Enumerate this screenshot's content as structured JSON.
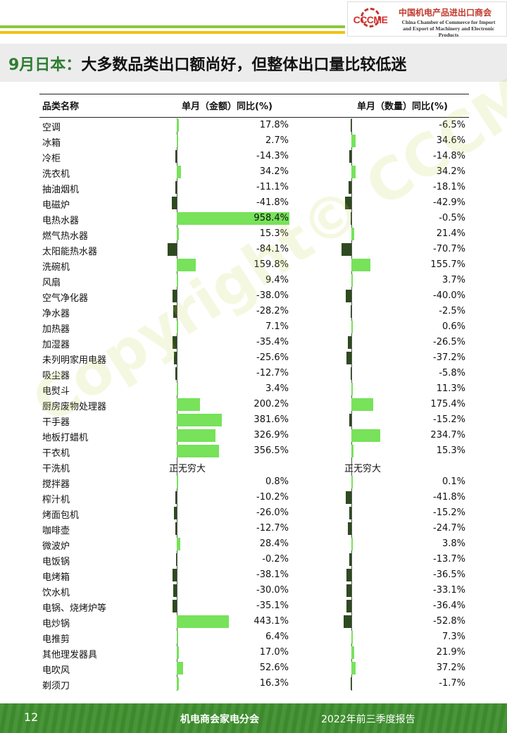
{
  "header": {
    "logo_mark": "CCCME",
    "logo_cn": "中国机电产品进出口商会",
    "logo_en_line1": "China Chamber of Commerce for Import",
    "logo_en_line2": "and Export of Machinery and Electronic Products"
  },
  "title_accent": "9月日本：",
  "title_rest": "大多数品类出口额尚好，但整体出口量比较低迷",
  "columns": {
    "name": "品类名称",
    "amount": "单月（金额）同比(%)",
    "quantity": "单月（数量）同比(%)"
  },
  "colors": {
    "positive": "#77e25a",
    "negative": "#2e4a1f",
    "accent": "#2e7d32"
  },
  "rows": [
    {
      "name": "空调",
      "amount": "17.8%",
      "quantity": "-6.5%"
    },
    {
      "name": "冰箱",
      "amount": "2.7%",
      "quantity": "34.6%"
    },
    {
      "name": "冷柜",
      "amount": "-14.3%",
      "quantity": "-14.8%"
    },
    {
      "name": "洗衣机",
      "amount": "34.2%",
      "quantity": "34.2%"
    },
    {
      "name": "抽油烟机",
      "amount": "-11.1%",
      "quantity": "-18.1%"
    },
    {
      "name": "电磁炉",
      "amount": "-41.8%",
      "quantity": "-42.9%"
    },
    {
      "name": "电热水器",
      "amount": "958.4%",
      "quantity": "-0.5%"
    },
    {
      "name": "燃气热水器",
      "amount": "15.3%",
      "quantity": "21.4%"
    },
    {
      "name": "太阳能热水器",
      "amount": "-84.1%",
      "quantity": "-70.7%"
    },
    {
      "name": "洗碗机",
      "amount": "159.8%",
      "quantity": "155.7%"
    },
    {
      "name": "风扇",
      "amount": "9.4%",
      "quantity": "3.7%"
    },
    {
      "name": "空气净化器",
      "amount": "-38.0%",
      "quantity": "-40.0%"
    },
    {
      "name": "净水器",
      "amount": "-28.2%",
      "quantity": "-2.5%"
    },
    {
      "name": "加热器",
      "amount": "7.1%",
      "quantity": "0.6%"
    },
    {
      "name": "加湿器",
      "amount": "-35.4%",
      "quantity": "-26.5%"
    },
    {
      "name": "未列明家用电器",
      "amount": "-25.6%",
      "quantity": "-37.2%"
    },
    {
      "name": "吸尘器",
      "amount": "-12.7%",
      "quantity": "-5.8%"
    },
    {
      "name": "电熨斗",
      "amount": "3.4%",
      "quantity": "11.3%"
    },
    {
      "name": "厨房废物处理器",
      "amount": "200.2%",
      "quantity": "175.4%"
    },
    {
      "name": "干手器",
      "amount": "381.6%",
      "quantity": "-15.2%"
    },
    {
      "name": "地板打蜡机",
      "amount": "326.9%",
      "quantity": "234.7%"
    },
    {
      "name": "干衣机",
      "amount": "356.5%",
      "quantity": "15.3%"
    },
    {
      "name": "干洗机",
      "amount": "正无穷大",
      "quantity": "正无穷大"
    },
    {
      "name": "搅拌器",
      "amount": "0.8%",
      "quantity": "0.1%"
    },
    {
      "name": "榨汁机",
      "amount": "-10.2%",
      "quantity": "-41.8%"
    },
    {
      "name": "烤面包机",
      "amount": "-26.0%",
      "quantity": "-15.2%"
    },
    {
      "name": "咖啡壶",
      "amount": "-12.7%",
      "quantity": "-24.7%"
    },
    {
      "name": "微波炉",
      "amount": "28.4%",
      "quantity": "3.8%"
    },
    {
      "name": "电饭锅",
      "amount": "-0.2%",
      "quantity": "-13.7%"
    },
    {
      "name": "电烤箱",
      "amount": "-38.1%",
      "quantity": "-36.5%"
    },
    {
      "name": "饮水机",
      "amount": "-30.0%",
      "quantity": "-33.1%"
    },
    {
      "name": "电锅、烧烤炉等",
      "amount": "-35.1%",
      "quantity": "-36.4%"
    },
    {
      "name": "电炒锅",
      "amount": "443.1%",
      "quantity": "-52.8%"
    },
    {
      "name": "电推剪",
      "amount": "6.4%",
      "quantity": "7.3%"
    },
    {
      "name": "其他理发器具",
      "amount": "17.0%",
      "quantity": "21.9%"
    },
    {
      "name": "电吹风",
      "amount": "52.6%",
      "quantity": "37.2%"
    },
    {
      "name": "剃须刀",
      "amount": "16.3%",
      "quantity": "-1.7%"
    }
  ],
  "watermark": "Copyright© CCCME",
  "footer": {
    "page": "12",
    "center": "机电商会家电分会",
    "right": "2022年前三季度报告"
  }
}
